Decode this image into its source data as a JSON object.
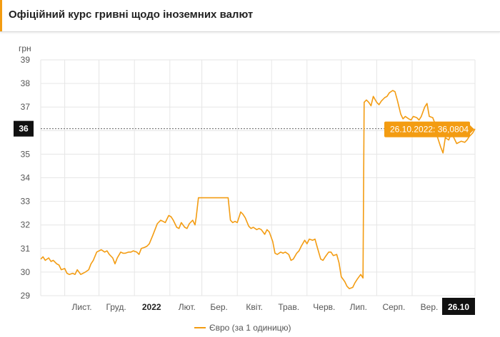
{
  "header": {
    "title": "Офіційний курс гривні щодо іноземних валют"
  },
  "chart_data": {
    "type": "line",
    "unit_label": "грн",
    "ylim": [
      29,
      39
    ],
    "yticks": [
      29,
      30,
      31,
      32,
      33,
      34,
      35,
      36,
      37,
      38,
      39
    ],
    "xlim": [
      "2021-10-11",
      "2022-10-26"
    ],
    "xticks": [
      {
        "date": "2021-11-01",
        "label": "Лист."
      },
      {
        "date": "2021-12-01",
        "label": "Груд."
      },
      {
        "date": "2022-01-01",
        "label": "2022",
        "bold": true
      },
      {
        "date": "2022-02-01",
        "label": "Лют."
      },
      {
        "date": "2022-03-01",
        "label": "Бер."
      },
      {
        "date": "2022-04-01",
        "label": "Квіт."
      },
      {
        "date": "2022-05-01",
        "label": "Трав."
      },
      {
        "date": "2022-06-01",
        "label": "Черв."
      },
      {
        "date": "2022-07-01",
        "label": "Лип."
      },
      {
        "date": "2022-08-01",
        "label": "Серп."
      },
      {
        "date": "2022-09-01",
        "label": "Вер."
      }
    ],
    "crosshair": {
      "x_label": "26.10",
      "y_label": "36",
      "y_value": 36.0804
    },
    "tooltip": "26.10.2022: 36,0804",
    "grid": true,
    "legend_position": "bottom",
    "line_color": "#f39c12",
    "series": [
      {
        "name": "Євро (за 1 одиницю)",
        "points": [
          [
            "2021-10-11",
            30.55
          ],
          [
            "2021-10-13",
            30.65
          ],
          [
            "2021-10-15",
            30.5
          ],
          [
            "2021-10-18",
            30.6
          ],
          [
            "2021-10-20",
            30.45
          ],
          [
            "2021-10-22",
            30.5
          ],
          [
            "2021-10-25",
            30.35
          ],
          [
            "2021-10-27",
            30.3
          ],
          [
            "2021-10-29",
            30.1
          ],
          [
            "2021-11-01",
            30.15
          ],
          [
            "2021-11-03",
            29.95
          ],
          [
            "2021-11-05",
            29.9
          ],
          [
            "2021-11-08",
            29.95
          ],
          [
            "2021-11-10",
            29.9
          ],
          [
            "2021-11-12",
            30.1
          ],
          [
            "2021-11-15",
            29.9
          ],
          [
            "2021-11-17",
            29.95
          ],
          [
            "2021-11-19",
            30.0
          ],
          [
            "2021-11-22",
            30.1
          ],
          [
            "2021-11-24",
            30.35
          ],
          [
            "2021-11-26",
            30.5
          ],
          [
            "2021-11-29",
            30.85
          ],
          [
            "2021-12-01",
            30.9
          ],
          [
            "2021-12-03",
            30.95
          ],
          [
            "2021-12-06",
            30.85
          ],
          [
            "2021-12-08",
            30.9
          ],
          [
            "2021-12-10",
            30.75
          ],
          [
            "2021-12-13",
            30.6
          ],
          [
            "2021-12-15",
            30.35
          ],
          [
            "2021-12-17",
            30.6
          ],
          [
            "2021-12-20",
            30.85
          ],
          [
            "2021-12-22",
            30.8
          ],
          [
            "2021-12-24",
            30.8
          ],
          [
            "2021-12-27",
            30.85
          ],
          [
            "2021-12-29",
            30.85
          ],
          [
            "2021-12-31",
            30.9
          ],
          [
            "2022-01-03",
            30.85
          ],
          [
            "2022-01-05",
            30.75
          ],
          [
            "2022-01-07",
            31.0
          ],
          [
            "2022-01-10",
            31.05
          ],
          [
            "2022-01-12",
            31.1
          ],
          [
            "2022-01-14",
            31.2
          ],
          [
            "2022-01-17",
            31.55
          ],
          [
            "2022-01-19",
            31.8
          ],
          [
            "2022-01-21",
            32.05
          ],
          [
            "2022-01-24",
            32.2
          ],
          [
            "2022-01-26",
            32.15
          ],
          [
            "2022-01-28",
            32.1
          ],
          [
            "2022-01-31",
            32.4
          ],
          [
            "2022-02-02",
            32.35
          ],
          [
            "2022-02-04",
            32.2
          ],
          [
            "2022-02-07",
            31.9
          ],
          [
            "2022-02-09",
            31.85
          ],
          [
            "2022-02-11",
            32.1
          ],
          [
            "2022-02-14",
            31.9
          ],
          [
            "2022-02-16",
            31.85
          ],
          [
            "2022-02-18",
            32.05
          ],
          [
            "2022-02-21",
            32.2
          ],
          [
            "2022-02-23",
            32.0
          ],
          [
            "2022-02-24",
            32.3
          ],
          [
            "2022-02-26",
            33.15
          ],
          [
            "2022-03-01",
            33.15
          ],
          [
            "2022-03-10",
            33.15
          ],
          [
            "2022-03-20",
            33.15
          ],
          [
            "2022-03-24",
            33.15
          ],
          [
            "2022-03-26",
            32.2
          ],
          [
            "2022-03-28",
            32.1
          ],
          [
            "2022-03-30",
            32.15
          ],
          [
            "2022-04-01",
            32.1
          ],
          [
            "2022-04-04",
            32.55
          ],
          [
            "2022-04-06",
            32.45
          ],
          [
            "2022-04-08",
            32.3
          ],
          [
            "2022-04-11",
            31.95
          ],
          [
            "2022-04-13",
            31.85
          ],
          [
            "2022-04-15",
            31.9
          ],
          [
            "2022-04-18",
            31.8
          ],
          [
            "2022-04-20",
            31.85
          ],
          [
            "2022-04-22",
            31.8
          ],
          [
            "2022-04-25",
            31.6
          ],
          [
            "2022-04-27",
            31.8
          ],
          [
            "2022-04-29",
            31.7
          ],
          [
            "2022-05-02",
            31.3
          ],
          [
            "2022-05-04",
            30.8
          ],
          [
            "2022-05-06",
            30.75
          ],
          [
            "2022-05-09",
            30.85
          ],
          [
            "2022-05-11",
            30.8
          ],
          [
            "2022-05-13",
            30.85
          ],
          [
            "2022-05-16",
            30.75
          ],
          [
            "2022-05-18",
            30.5
          ],
          [
            "2022-05-20",
            30.55
          ],
          [
            "2022-05-23",
            30.8
          ],
          [
            "2022-05-25",
            30.9
          ],
          [
            "2022-05-27",
            31.1
          ],
          [
            "2022-05-30",
            31.35
          ],
          [
            "2022-06-01",
            31.2
          ],
          [
            "2022-06-03",
            31.4
          ],
          [
            "2022-06-06",
            31.35
          ],
          [
            "2022-06-08",
            31.4
          ],
          [
            "2022-06-10",
            31.05
          ],
          [
            "2022-06-13",
            30.55
          ],
          [
            "2022-06-15",
            30.5
          ],
          [
            "2022-06-17",
            30.65
          ],
          [
            "2022-06-20",
            30.85
          ],
          [
            "2022-06-22",
            30.85
          ],
          [
            "2022-06-24",
            30.7
          ],
          [
            "2022-06-27",
            30.75
          ],
          [
            "2022-06-29",
            30.4
          ],
          [
            "2022-07-01",
            29.8
          ],
          [
            "2022-07-04",
            29.6
          ],
          [
            "2022-07-06",
            29.4
          ],
          [
            "2022-07-08",
            29.3
          ],
          [
            "2022-07-11",
            29.35
          ],
          [
            "2022-07-13",
            29.55
          ],
          [
            "2022-07-15",
            29.7
          ],
          [
            "2022-07-18",
            29.9
          ],
          [
            "2022-07-20",
            29.75
          ],
          [
            "2022-07-21",
            37.2
          ],
          [
            "2022-07-23",
            37.3
          ],
          [
            "2022-07-25",
            37.2
          ],
          [
            "2022-07-27",
            37.05
          ],
          [
            "2022-07-29",
            37.45
          ],
          [
            "2022-08-01",
            37.2
          ],
          [
            "2022-08-03",
            37.1
          ],
          [
            "2022-08-05",
            37.25
          ],
          [
            "2022-08-08",
            37.4
          ],
          [
            "2022-08-10",
            37.45
          ],
          [
            "2022-08-12",
            37.6
          ],
          [
            "2022-08-15",
            37.7
          ],
          [
            "2022-08-17",
            37.65
          ],
          [
            "2022-08-19",
            37.3
          ],
          [
            "2022-08-22",
            36.7
          ],
          [
            "2022-08-24",
            36.5
          ],
          [
            "2022-08-26",
            36.6
          ],
          [
            "2022-08-29",
            36.5
          ],
          [
            "2022-08-31",
            36.45
          ],
          [
            "2022-09-02",
            36.6
          ],
          [
            "2022-09-05",
            36.55
          ],
          [
            "2022-09-07",
            36.45
          ],
          [
            "2022-09-09",
            36.6
          ],
          [
            "2022-09-12",
            37.0
          ],
          [
            "2022-09-14",
            37.15
          ],
          [
            "2022-09-16",
            36.6
          ],
          [
            "2022-09-19",
            36.55
          ],
          [
            "2022-09-21",
            36.3
          ],
          [
            "2022-09-23",
            35.75
          ],
          [
            "2022-09-26",
            35.3
          ],
          [
            "2022-09-28",
            35.05
          ],
          [
            "2022-09-30",
            35.7
          ],
          [
            "2022-10-03",
            35.6
          ],
          [
            "2022-10-05",
            35.85
          ],
          [
            "2022-10-07",
            35.75
          ],
          [
            "2022-10-10",
            35.45
          ],
          [
            "2022-10-12",
            35.5
          ],
          [
            "2022-10-14",
            35.55
          ],
          [
            "2022-10-17",
            35.5
          ],
          [
            "2022-10-19",
            35.6
          ],
          [
            "2022-10-21",
            35.75
          ],
          [
            "2022-10-24",
            35.9
          ],
          [
            "2022-10-26",
            36.08
          ]
        ]
      }
    ]
  }
}
